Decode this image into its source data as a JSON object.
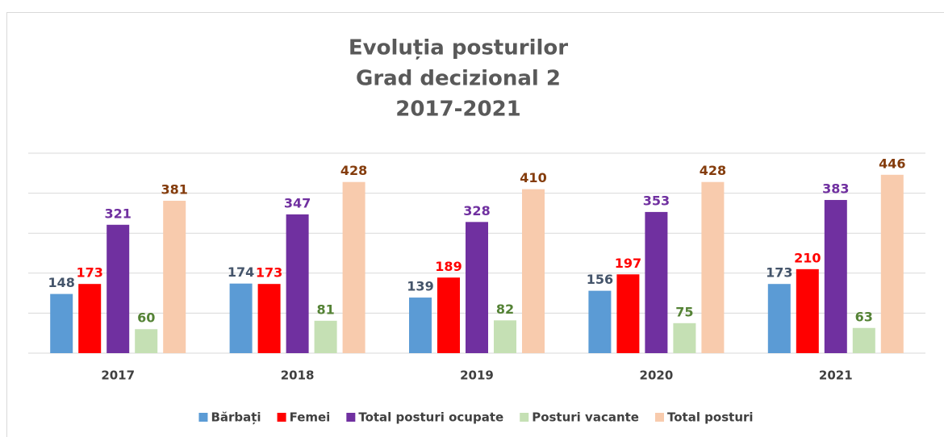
{
  "chart_data": {
    "type": "bar",
    "title": [
      "Evoluția posturilor",
      "Grad decizional 2",
      "2017-2021"
    ],
    "categories": [
      "2017",
      "2018",
      "2019",
      "2020",
      "2021"
    ],
    "series": [
      {
        "name": "Bărbați",
        "color": "#5b9bd5",
        "label_color": "#44546a",
        "values": [
          148,
          174,
          139,
          156,
          173
        ]
      },
      {
        "name": "Femei",
        "color": "#ff0000",
        "label_color": "#ff0000",
        "values": [
          173,
          173,
          189,
          197,
          210
        ]
      },
      {
        "name": "Total posturi ocupate",
        "color": "#7030a0",
        "label_color": "#7030a0",
        "values": [
          321,
          347,
          328,
          353,
          383
        ]
      },
      {
        "name": "Posturi vacante",
        "color": "#c5e0b4",
        "label_color": "#548235",
        "values": [
          60,
          81,
          82,
          75,
          63
        ]
      },
      {
        "name": "Total posturi",
        "color": "#f8cbad",
        "label_color": "#843c0c",
        "values": [
          381,
          428,
          410,
          428,
          446
        ]
      }
    ],
    "ylim": [
      0,
      500
    ],
    "yticks": [
      0,
      100,
      200,
      300,
      400,
      500
    ],
    "grid": true,
    "legend": "bottom"
  }
}
